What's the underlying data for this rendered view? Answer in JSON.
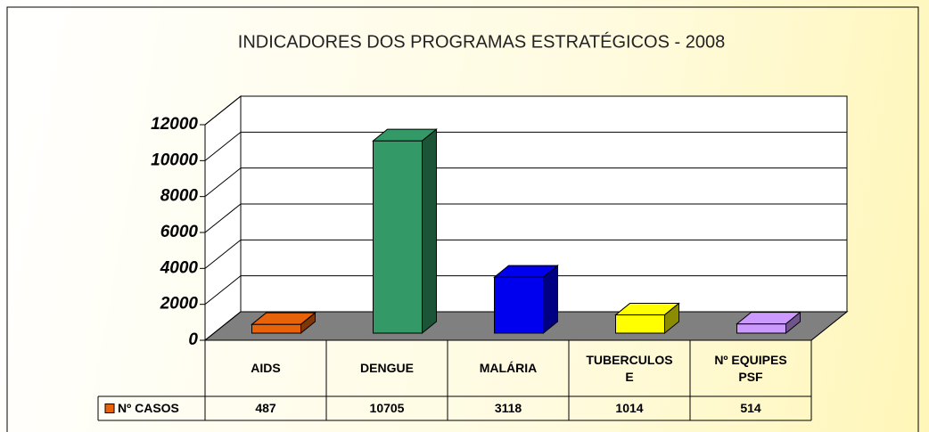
{
  "chart_data": {
    "type": "bar3d",
    "title": "INDICADORES  DOS PROGRAMAS ESTRATÉGICOS - 2008",
    "categories": [
      "AIDS",
      "DENGUE",
      "MALÁRIA",
      "TUBERCULOSE",
      "Nº EQUIPES PSF"
    ],
    "series": [
      {
        "name": "Nº CASOS",
        "color": "#e8620a",
        "values": [
          487,
          10705,
          3118,
          1014,
          514
        ]
      }
    ],
    "point_colors": [
      "#e8620a",
      "#339966",
      "#0000ee",
      "#ffff00",
      "#cc99ff"
    ],
    "ylim": [
      0,
      12000
    ],
    "yticks": [
      0,
      2000,
      4000,
      6000,
      8000,
      10000,
      12000
    ],
    "grid": true,
    "data_table": true
  }
}
